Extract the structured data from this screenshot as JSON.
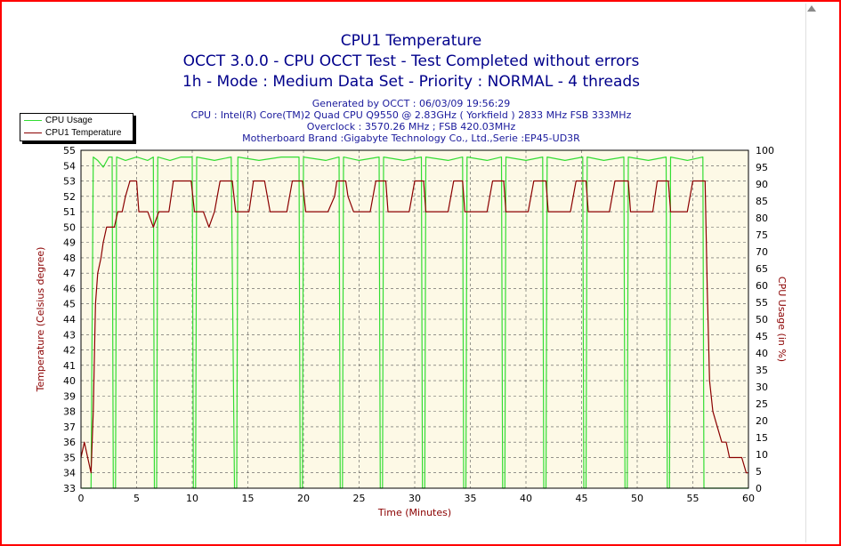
{
  "colors": {
    "background": "#ffffff",
    "frame": "#ff0000",
    "plot_bg": "#fdf9e6",
    "grid": "#555555",
    "cpu_usage": "#33dd33",
    "temperature": "#8b0000",
    "title": "#00008b",
    "axis_label": "#8b0000"
  },
  "header": {
    "title": "CPU1 Temperature",
    "line2": "OCCT 3.0.0 - CPU OCCT Test - Test Completed without errors",
    "line3": "1h - Mode : Medium Data Set - Priority : NORMAL - 4 threads",
    "info1": "Generated by OCCT : 06/03/09 19:56:29",
    "info2": "CPU : Intel(R) Core(TM)2 Quad CPU Q9550 @ 2.83GHz ( Yorkfield ) 2833 MHz FSB 333MHz",
    "info3": "Overclock : 3570.26 MHz ; FSB 420.03MHz",
    "info4": "Motherboard Brand :Gigabyte Technology Co., Ltd.,Serie :EP45-UD3R"
  },
  "legend": {
    "cpu_usage": "CPU Usage",
    "temperature": "CPU1 Temperature"
  },
  "icons": {
    "scroll_up": "triangle-up-icon"
  },
  "chart_data": {
    "type": "line",
    "xlabel": "Time (Minutes)",
    "ylabel": "Temperature (Celsius degree)",
    "y2label": "CPU Usage (in %)",
    "xlim": [
      0,
      60
    ],
    "ylim": [
      33,
      55
    ],
    "y2lim": [
      0,
      100
    ],
    "x_ticks": [
      0,
      5,
      10,
      15,
      20,
      25,
      30,
      35,
      40,
      45,
      50,
      55,
      60
    ],
    "y_ticks": [
      33,
      34,
      35,
      36,
      37,
      38,
      39,
      40,
      41,
      42,
      43,
      44,
      45,
      46,
      47,
      48,
      49,
      50,
      51,
      52,
      53,
      54,
      55
    ],
    "y2_ticks": [
      0,
      5,
      10,
      15,
      20,
      25,
      30,
      35,
      40,
      45,
      50,
      55,
      60,
      65,
      70,
      75,
      80,
      85,
      90,
      95,
      100
    ],
    "grid": true,
    "legend_position": "top-left",
    "series": [
      {
        "name": "CPU Usage",
        "axis": "right",
        "points": [
          [
            0.1,
            0
          ],
          [
            0.9,
            0
          ],
          [
            1.1,
            98
          ],
          [
            1.5,
            97
          ],
          [
            2.0,
            95
          ],
          [
            2.5,
            98
          ],
          [
            2.8,
            98
          ],
          [
            2.9,
            0
          ],
          [
            3.1,
            0
          ],
          [
            3.2,
            98
          ],
          [
            4.0,
            97
          ],
          [
            5.0,
            98
          ],
          [
            6.0,
            97
          ],
          [
            6.5,
            98
          ],
          [
            6.6,
            0
          ],
          [
            6.8,
            0
          ],
          [
            6.9,
            98
          ],
          [
            8.0,
            97
          ],
          [
            9.0,
            98
          ],
          [
            10.0,
            98
          ],
          [
            10.1,
            0
          ],
          [
            10.3,
            0
          ],
          [
            10.4,
            98
          ],
          [
            12.0,
            97
          ],
          [
            13.5,
            98
          ],
          [
            13.8,
            0
          ],
          [
            14.0,
            0
          ],
          [
            14.1,
            98
          ],
          [
            16.0,
            97
          ],
          [
            18.0,
            98
          ],
          [
            19.6,
            98
          ],
          [
            19.7,
            0
          ],
          [
            19.9,
            0
          ],
          [
            20.0,
            98
          ],
          [
            22.0,
            97
          ],
          [
            23.2,
            98
          ],
          [
            23.3,
            0
          ],
          [
            23.5,
            0
          ],
          [
            23.6,
            98
          ],
          [
            25.0,
            97
          ],
          [
            26.8,
            98
          ],
          [
            26.9,
            0
          ],
          [
            27.1,
            0
          ],
          [
            27.2,
            98
          ],
          [
            29.0,
            97
          ],
          [
            30.6,
            98
          ],
          [
            30.7,
            0
          ],
          [
            30.9,
            0
          ],
          [
            31.0,
            98
          ],
          [
            33.0,
            97
          ],
          [
            34.3,
            98
          ],
          [
            34.4,
            0
          ],
          [
            34.6,
            0
          ],
          [
            34.7,
            98
          ],
          [
            36.5,
            97
          ],
          [
            37.8,
            98
          ],
          [
            37.9,
            0
          ],
          [
            38.1,
            0
          ],
          [
            38.2,
            98
          ],
          [
            40.0,
            97
          ],
          [
            41.5,
            98
          ],
          [
            41.6,
            0
          ],
          [
            41.8,
            0
          ],
          [
            41.9,
            98
          ],
          [
            43.5,
            97
          ],
          [
            45.1,
            98
          ],
          [
            45.2,
            0
          ],
          [
            45.4,
            0
          ],
          [
            45.5,
            98
          ],
          [
            47.0,
            97
          ],
          [
            48.8,
            98
          ],
          [
            48.9,
            0
          ],
          [
            49.1,
            0
          ],
          [
            49.2,
            98
          ],
          [
            51.0,
            97
          ],
          [
            52.6,
            98
          ],
          [
            52.7,
            0
          ],
          [
            52.9,
            0
          ],
          [
            53.0,
            98
          ],
          [
            54.5,
            97
          ],
          [
            55.9,
            98
          ],
          [
            56.0,
            0
          ],
          [
            60,
            0
          ]
        ]
      },
      {
        "name": "CPU1 Temperature",
        "axis": "left",
        "points": [
          [
            0,
            35
          ],
          [
            0.3,
            36
          ],
          [
            0.6,
            35
          ],
          [
            0.9,
            34
          ],
          [
            1.1,
            38
          ],
          [
            1.3,
            45
          ],
          [
            1.5,
            47
          ],
          [
            1.8,
            48
          ],
          [
            2.0,
            49
          ],
          [
            2.3,
            50
          ],
          [
            2.7,
            50
          ],
          [
            3.0,
            50
          ],
          [
            3.3,
            51
          ],
          [
            3.7,
            51
          ],
          [
            4.0,
            52
          ],
          [
            4.4,
            53
          ],
          [
            5.0,
            53
          ],
          [
            5.2,
            51
          ],
          [
            5.6,
            51
          ],
          [
            6.0,
            51
          ],
          [
            6.5,
            50
          ],
          [
            7.0,
            51
          ],
          [
            7.5,
            51
          ],
          [
            7.9,
            51
          ],
          [
            8.3,
            53
          ],
          [
            9.0,
            53
          ],
          [
            9.9,
            53
          ],
          [
            10.2,
            51
          ],
          [
            10.6,
            51
          ],
          [
            11.0,
            51
          ],
          [
            11.5,
            50
          ],
          [
            12.0,
            51
          ],
          [
            12.5,
            53
          ],
          [
            13.0,
            53
          ],
          [
            13.6,
            53
          ],
          [
            13.9,
            51
          ],
          [
            14.3,
            51
          ],
          [
            14.7,
            51
          ],
          [
            15.1,
            51
          ],
          [
            15.5,
            53
          ],
          [
            16.5,
            53
          ],
          [
            17.0,
            51
          ],
          [
            17.5,
            51
          ],
          [
            18.0,
            51
          ],
          [
            18.5,
            51
          ],
          [
            19.0,
            53
          ],
          [
            19.9,
            53
          ],
          [
            20.2,
            51
          ],
          [
            20.8,
            51
          ],
          [
            21.5,
            51
          ],
          [
            22.2,
            51
          ],
          [
            22.8,
            52
          ],
          [
            23.0,
            53
          ],
          [
            23.8,
            53
          ],
          [
            24.0,
            52
          ],
          [
            24.5,
            51
          ],
          [
            25.0,
            51
          ],
          [
            25.6,
            51
          ],
          [
            26.0,
            51
          ],
          [
            26.5,
            53
          ],
          [
            27.4,
            53
          ],
          [
            27.6,
            51
          ],
          [
            28.0,
            51
          ],
          [
            28.5,
            51
          ],
          [
            29.0,
            51
          ],
          [
            29.5,
            51
          ],
          [
            30.0,
            53
          ],
          [
            30.8,
            53
          ],
          [
            31.0,
            51
          ],
          [
            31.5,
            51
          ],
          [
            32.0,
            51
          ],
          [
            32.5,
            51
          ],
          [
            33.0,
            51
          ],
          [
            33.5,
            53
          ],
          [
            34.3,
            53
          ],
          [
            34.5,
            51
          ],
          [
            35.0,
            51
          ],
          [
            35.5,
            51
          ],
          [
            36.0,
            51
          ],
          [
            36.5,
            51
          ],
          [
            37.0,
            53
          ],
          [
            38.0,
            53
          ],
          [
            38.2,
            51
          ],
          [
            38.7,
            51
          ],
          [
            39.2,
            51
          ],
          [
            39.7,
            51
          ],
          [
            40.2,
            51
          ],
          [
            40.7,
            53
          ],
          [
            41.8,
            53
          ],
          [
            42.0,
            51
          ],
          [
            42.5,
            51
          ],
          [
            43.0,
            51
          ],
          [
            43.5,
            51
          ],
          [
            44.0,
            51
          ],
          [
            44.5,
            53
          ],
          [
            45.4,
            53
          ],
          [
            45.6,
            51
          ],
          [
            46.0,
            51
          ],
          [
            46.5,
            51
          ],
          [
            47.0,
            51
          ],
          [
            47.5,
            51
          ],
          [
            48.0,
            53
          ],
          [
            49.2,
            53
          ],
          [
            49.4,
            51
          ],
          [
            49.9,
            51
          ],
          [
            50.4,
            51
          ],
          [
            50.9,
            51
          ],
          [
            51.4,
            51
          ],
          [
            51.8,
            53
          ],
          [
            52.8,
            53
          ],
          [
            53.0,
            51
          ],
          [
            53.5,
            51
          ],
          [
            54.0,
            51
          ],
          [
            54.5,
            51
          ],
          [
            55.0,
            53
          ],
          [
            56.1,
            53
          ],
          [
            56.3,
            46
          ],
          [
            56.5,
            40
          ],
          [
            56.8,
            38
          ],
          [
            57.2,
            37
          ],
          [
            57.6,
            36
          ],
          [
            58.0,
            36
          ],
          [
            58.3,
            35
          ],
          [
            58.7,
            35
          ],
          [
            59.0,
            35
          ],
          [
            59.4,
            35
          ],
          [
            59.8,
            34
          ],
          [
            60,
            34
          ]
        ]
      }
    ]
  }
}
